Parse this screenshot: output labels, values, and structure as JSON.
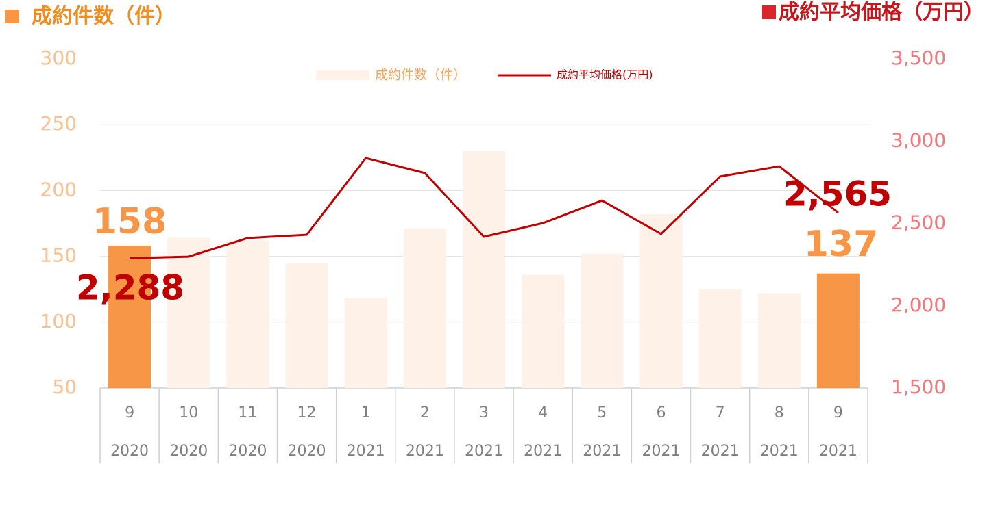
{
  "chart_data": {
    "type": "bar_line",
    "y_label": "成約件数（件）",
    "y2_label": "成約平均価格（万円）",
    "categories": [
      "9",
      "10",
      "11",
      "12",
      "1",
      "2",
      "3",
      "4",
      "5",
      "6",
      "7",
      "8",
      "9"
    ],
    "years": [
      "2020",
      "2020",
      "2020",
      "2020",
      "2021",
      "2021",
      "2021",
      "2021",
      "2021",
      "2021",
      "2021",
      "2021",
      "2021"
    ],
    "series": [
      {
        "name": "成約件数（件）",
        "type": "bar",
        "color": "#fdf1e8",
        "colors": [
          "#f79646",
          "#fdf1e8",
          "#fdf1e8",
          "#fdf1e8",
          "#fdf1e8",
          "#fdf1e8",
          "#fdf1e8",
          "#fdf1e8",
          "#fdf1e8",
          "#fdf1e8",
          "#fdf1e8",
          "#fdf1e8",
          "#f79646"
        ],
        "values": [
          158,
          164,
          162,
          145,
          118,
          171,
          230,
          136,
          152,
          182,
          125,
          122,
          137
        ],
        "value_labels": [
          "158",
          null,
          null,
          null,
          null,
          null,
          null,
          null,
          null,
          null,
          null,
          null,
          "137"
        ]
      },
      {
        "name": "成約平均価格(万円)",
        "type": "line",
        "axis": "y2",
        "color": "#c00000",
        "values": [
          2288,
          2298,
          2411,
          2431,
          2897,
          2806,
          2419,
          2502,
          2639,
          2436,
          2785,
          2847,
          2565
        ],
        "value_labels": [
          "2,288",
          null,
          null,
          null,
          null,
          null,
          null,
          null,
          null,
          null,
          null,
          null,
          "2,565"
        ]
      }
    ],
    "ylim": [
      50,
      300
    ],
    "yticks": [
      50,
      100,
      150,
      200,
      250,
      300
    ],
    "y2lim": [
      1500,
      3500
    ],
    "y2ticks": [
      {
        "value": 1500,
        "label": "1,500"
      },
      {
        "value": 2000,
        "label": "2,000"
      },
      {
        "value": 2500,
        "label": "2,500"
      },
      {
        "value": 3000,
        "label": "3,000"
      },
      {
        "value": 3500,
        "label": "3,500"
      }
    ],
    "grid": true
  }
}
